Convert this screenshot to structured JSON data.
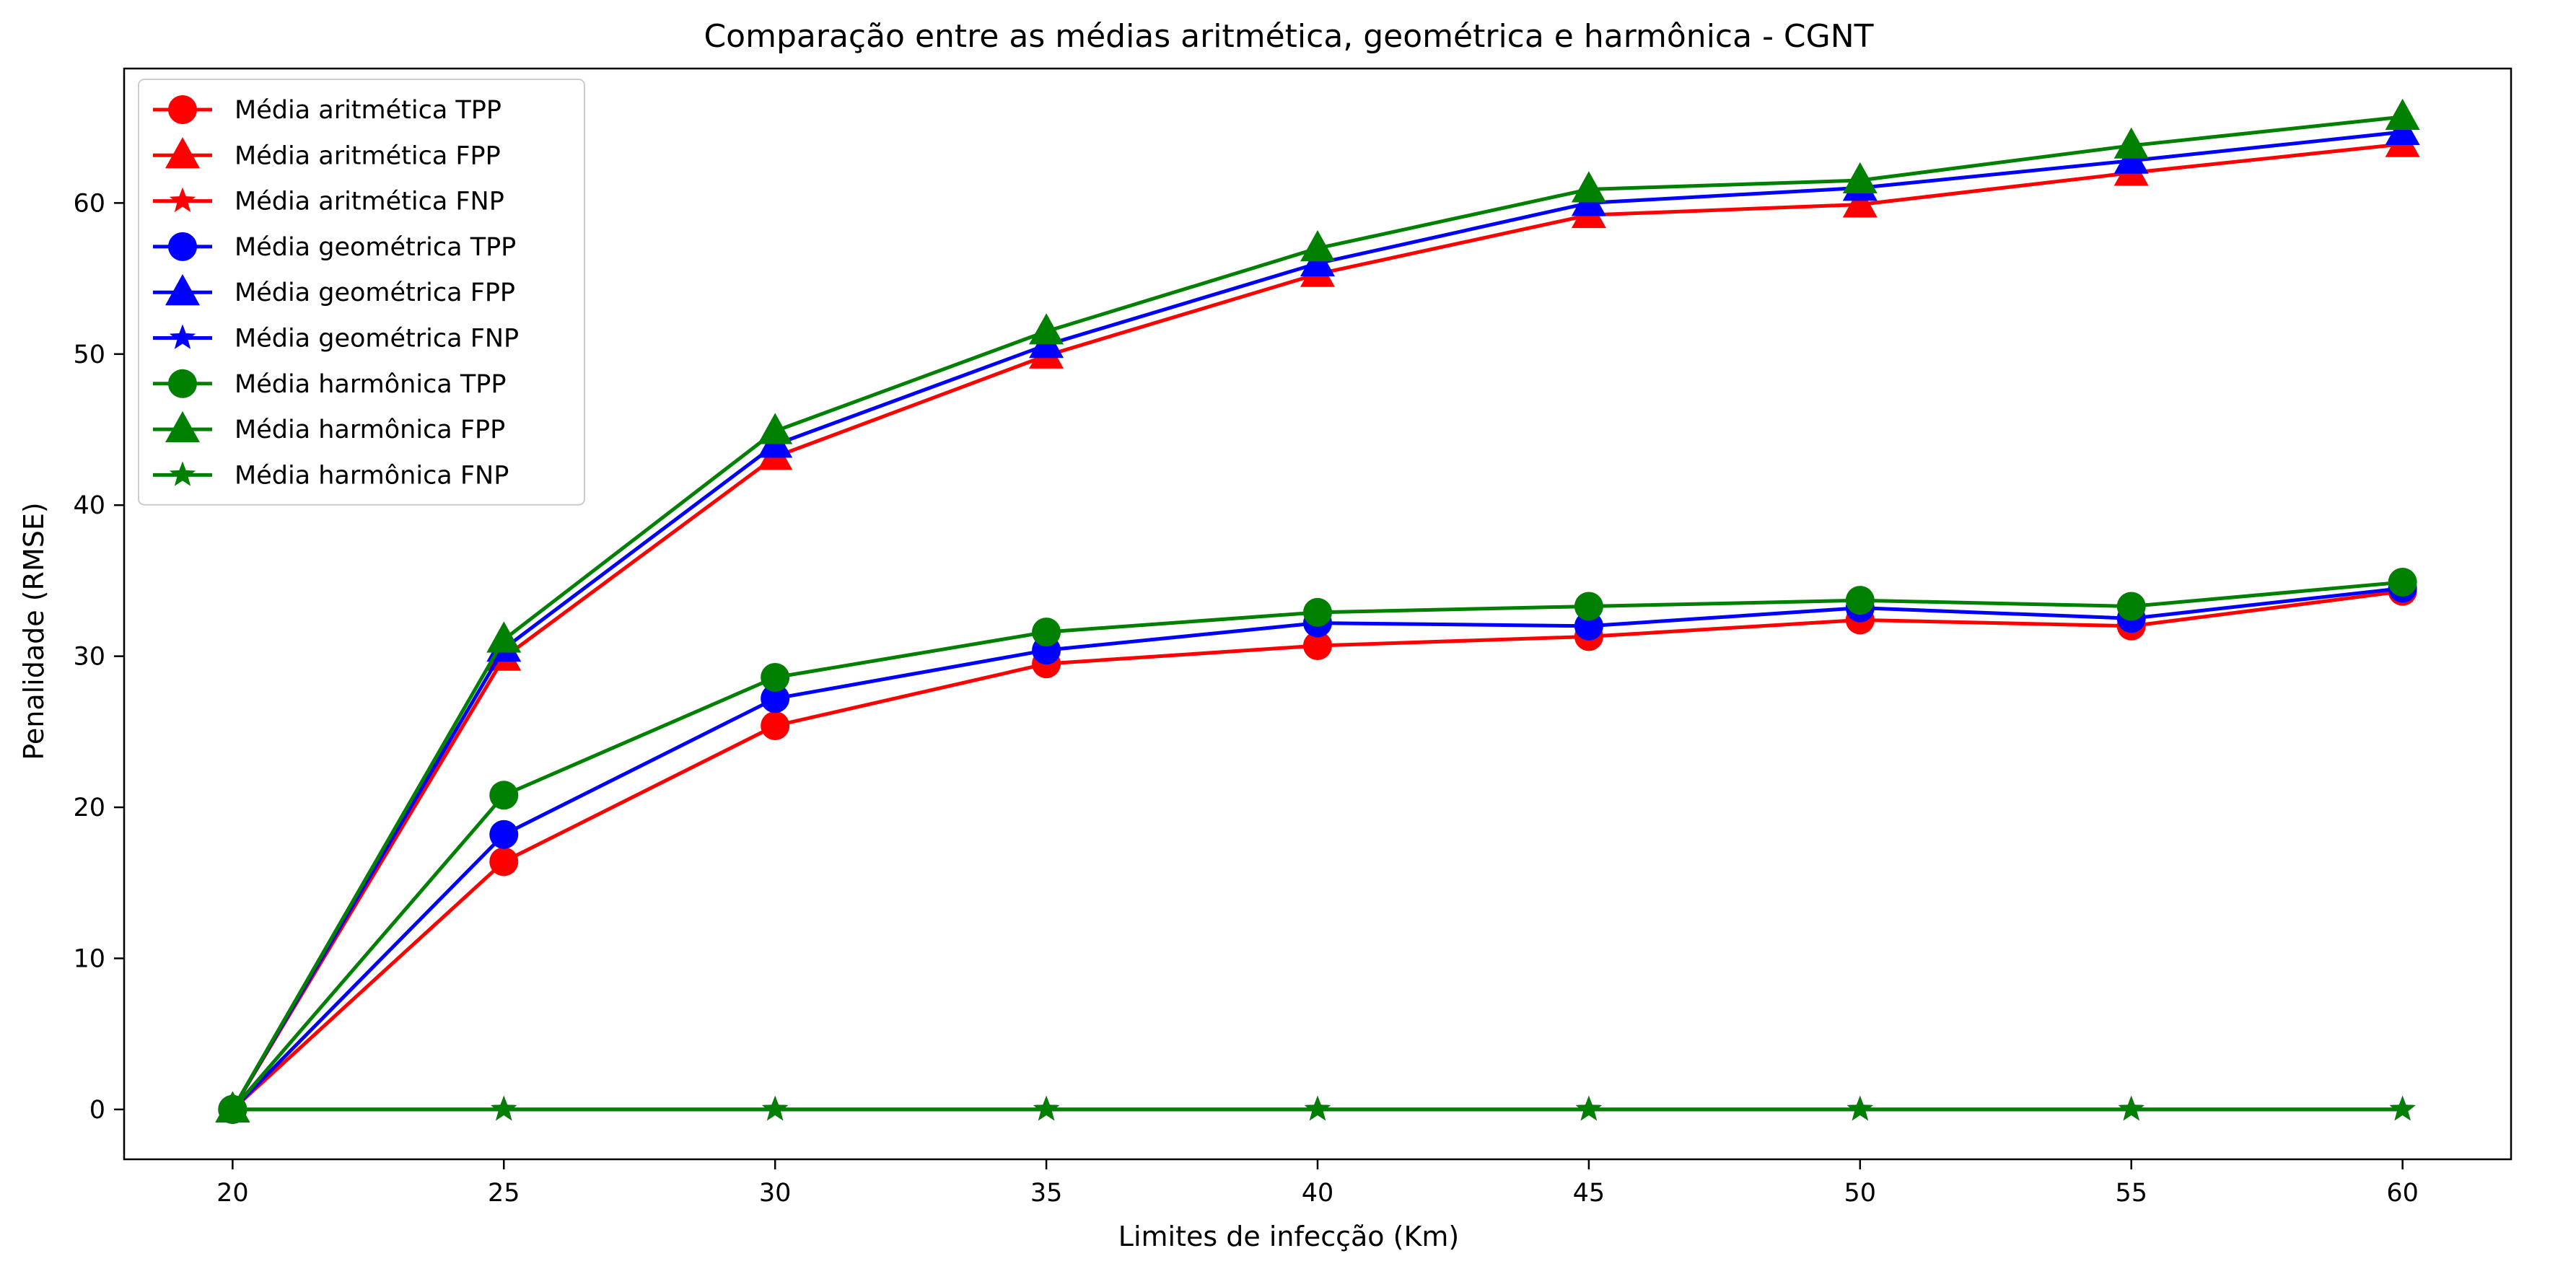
{
  "chart_data": {
    "type": "line",
    "title": "Comparação entre as médias aritmética, geométrica e harmônica - CGNT",
    "xlabel": "Limites de infecção (Km)",
    "ylabel": "Penalidade (RMSE)",
    "x": [
      20,
      25,
      30,
      35,
      40,
      45,
      50,
      55,
      60
    ],
    "xticks": [
      20,
      25,
      30,
      35,
      40,
      45,
      50,
      55,
      60
    ],
    "yticks": [
      0,
      10,
      20,
      30,
      40,
      50,
      60
    ],
    "xlim": [
      18,
      62
    ],
    "ylim": [
      -3.3,
      68.9
    ],
    "grid": false,
    "legend_position": "upper-left",
    "series": [
      {
        "name": "Média aritmética TPP",
        "color": "#ff0000",
        "marker": "circle",
        "values": [
          0,
          16.4,
          25.4,
          29.5,
          30.7,
          31.3,
          32.4,
          32.0,
          34.3
        ]
      },
      {
        "name": "Média aritmética FPP",
        "color": "#ff0000",
        "marker": "triangle",
        "values": [
          0,
          29.9,
          43.2,
          49.9,
          55.3,
          59.2,
          59.9,
          62.0,
          63.9
        ]
      },
      {
        "name": "Média aritmética FNP",
        "color": "#ff0000",
        "marker": "star",
        "values": [
          0,
          0,
          0,
          0,
          0,
          0,
          0,
          0,
          0
        ]
      },
      {
        "name": "Média geométrica TPP",
        "color": "#0000ff",
        "marker": "circle",
        "values": [
          0,
          18.2,
          27.2,
          30.4,
          32.2,
          32.0,
          33.2,
          32.5,
          34.5
        ]
      },
      {
        "name": "Média geométrica FPP",
        "color": "#0000ff",
        "marker": "triangle",
        "values": [
          0,
          30.5,
          44.0,
          50.6,
          56.0,
          60.0,
          61.0,
          62.8,
          64.7
        ]
      },
      {
        "name": "Média geométrica FNP",
        "color": "#0000ff",
        "marker": "star",
        "values": [
          0,
          0,
          0,
          0,
          0,
          0,
          0,
          0,
          0
        ]
      },
      {
        "name": "Média harmônica TPP",
        "color": "#008000",
        "marker": "circle",
        "values": [
          0,
          20.8,
          28.6,
          31.6,
          32.9,
          33.3,
          33.7,
          33.3,
          34.9
        ]
      },
      {
        "name": "Média harmônica FPP",
        "color": "#008000",
        "marker": "triangle",
        "values": [
          0,
          31.1,
          44.9,
          51.5,
          57.0,
          60.9,
          61.5,
          63.8,
          65.7
        ]
      },
      {
        "name": "Média harmônica FNP",
        "color": "#008000",
        "marker": "star",
        "values": [
          0,
          0,
          0,
          0,
          0,
          0,
          0,
          0,
          0
        ]
      }
    ]
  }
}
